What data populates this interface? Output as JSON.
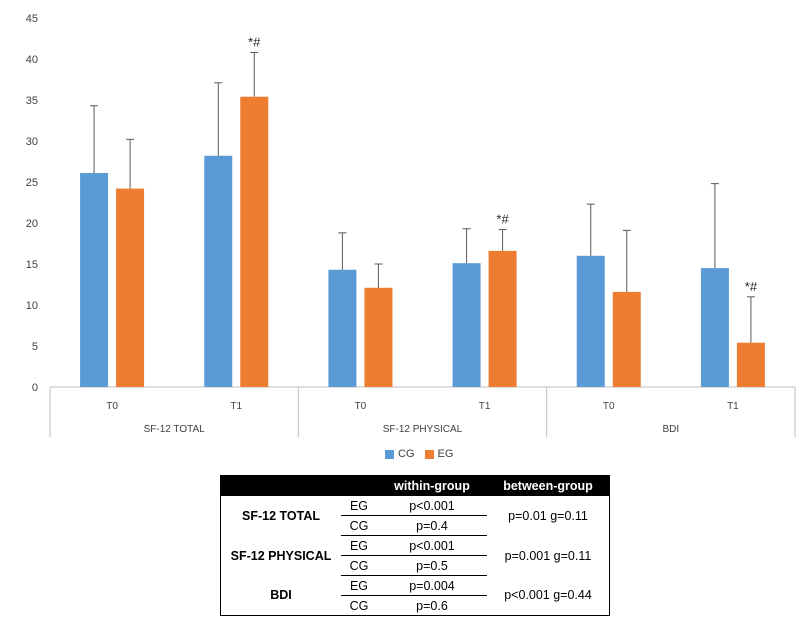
{
  "chart_data": {
    "type": "bar",
    "ylim": [
      0,
      45
    ],
    "yticks": [
      0,
      5,
      10,
      15,
      20,
      25,
      30,
      35,
      40,
      45
    ],
    "groups": [
      {
        "name": "SF-12 TOTAL",
        "categories": [
          "T0",
          "T1"
        ]
      },
      {
        "name": "SF-12 PHYSICAL",
        "categories": [
          "T0",
          "T1"
        ]
      },
      {
        "name": "BDI",
        "categories": [
          "T0",
          "T1"
        ]
      }
    ],
    "series": [
      {
        "name": "CG",
        "color": "#5B9BD5",
        "values": [
          26.1,
          28.2,
          14.3,
          15.1,
          16.0,
          14.5
        ],
        "errors": [
          8.2,
          8.9,
          4.5,
          4.2,
          6.3,
          10.3
        ]
      },
      {
        "name": "EG",
        "color": "#ED7D31",
        "values": [
          24.2,
          35.4,
          12.1,
          16.6,
          11.6,
          5.4
        ],
        "errors": [
          6.0,
          5.4,
          2.9,
          2.6,
          7.5,
          5.6
        ]
      }
    ],
    "annotations": [
      {
        "category_index": 1,
        "series": "EG",
        "text": "*#"
      },
      {
        "category_index": 3,
        "series": "EG",
        "text": "*#"
      },
      {
        "category_index": 5,
        "series": "EG",
        "text": "*#"
      }
    ],
    "legend": {
      "position": "bottom",
      "labels": [
        "CG",
        "EG"
      ]
    }
  },
  "table": {
    "headers": [
      "",
      "",
      "within-group",
      "between-group"
    ],
    "rows": [
      {
        "measure": "SF-12 TOTAL",
        "between": "p=0.01 g=0.11",
        "sub": [
          {
            "group": "EG",
            "within": "p<0.001"
          },
          {
            "group": "CG",
            "within": "p=0.4"
          }
        ]
      },
      {
        "measure": "SF-12 PHYSICAL",
        "between": "p=0.001 g=0.11",
        "sub": [
          {
            "group": "EG",
            "within": "p<0.001"
          },
          {
            "group": "CG",
            "within": "p=0.5"
          }
        ]
      },
      {
        "measure": "BDI",
        "between": "p<0.001 g=0.44",
        "sub": [
          {
            "group": "EG",
            "within": "p=0.004"
          },
          {
            "group": "CG",
            "within": "p=0.6"
          }
        ]
      }
    ]
  }
}
